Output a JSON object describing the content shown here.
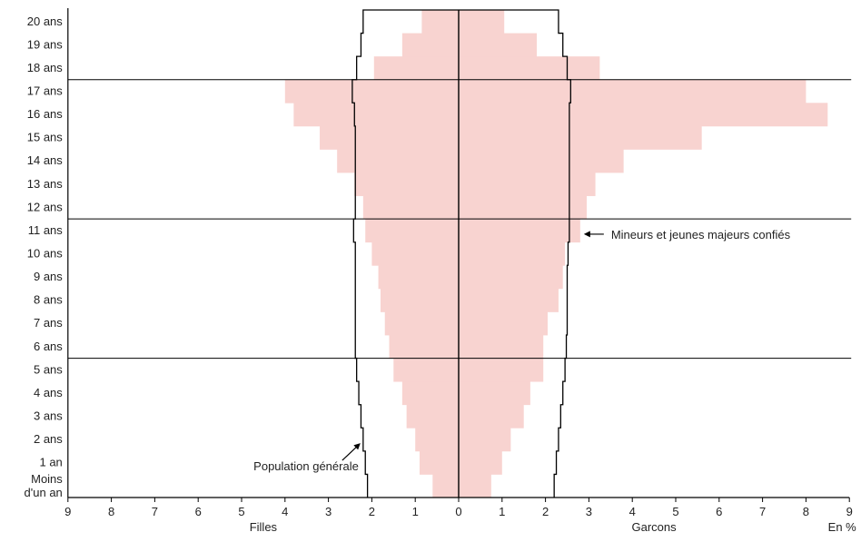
{
  "chart_data": {
    "type": "bar",
    "subtype": "population-pyramid",
    "orientation": "horizontal",
    "categories": [
      "Moins d'un an",
      "1 an",
      "2 ans",
      "3 ans",
      "4 ans",
      "5 ans",
      "6 ans",
      "7 ans",
      "8 ans",
      "9 ans",
      "10 ans",
      "11 ans",
      "12 ans",
      "13 ans",
      "14 ans",
      "15 ans",
      "16 ans",
      "17 ans",
      "18 ans",
      "19 ans",
      "20 ans"
    ],
    "category_label_lines": {
      "Moins d'un an": [
        "Moins",
        "d'un an"
      ]
    },
    "series": [
      {
        "side": "left",
        "name": "",
        "kind": "filled-bars",
        "color": "#f8d3d0",
        "values": [
          0.6,
          0.9,
          1.0,
          1.2,
          1.3,
          1.5,
          1.6,
          1.7,
          1.8,
          1.85,
          2.0,
          2.15,
          2.2,
          2.4,
          2.8,
          3.2,
          3.8,
          4.0,
          1.95,
          1.3,
          0.85
        ]
      },
      {
        "side": "right",
        "name": "",
        "kind": "filled-bars",
        "color": "#f8d3d0",
        "values": [
          0.75,
          1.0,
          1.2,
          1.5,
          1.65,
          1.95,
          1.95,
          2.05,
          2.3,
          2.4,
          2.45,
          2.8,
          2.95,
          3.15,
          3.8,
          5.6,
          8.5,
          8.0,
          3.25,
          1.8,
          1.05
        ]
      },
      {
        "side": "left",
        "name": "",
        "kind": "outline",
        "color": "#000000",
        "values": [
          2.1,
          2.15,
          2.2,
          2.25,
          2.3,
          2.35,
          2.38,
          2.38,
          2.38,
          2.38,
          2.38,
          2.42,
          2.38,
          2.38,
          2.38,
          2.38,
          2.4,
          2.45,
          2.35,
          2.25,
          2.2
        ]
      },
      {
        "side": "right",
        "name": "",
        "kind": "outline",
        "color": "#000000",
        "values": [
          2.2,
          2.25,
          2.3,
          2.35,
          2.4,
          2.45,
          2.48,
          2.5,
          2.5,
          2.5,
          2.52,
          2.55,
          2.55,
          2.55,
          2.55,
          2.55,
          2.55,
          2.58,
          2.5,
          2.4,
          2.3
        ]
      }
    ],
    "xlim_left": [
      0,
      9
    ],
    "xlim_right": [
      0,
      9
    ],
    "x_ticks": [
      9,
      8,
      7,
      6,
      5,
      4,
      3,
      2,
      1,
      0,
      1,
      2,
      3,
      4,
      5,
      6,
      7,
      8,
      9
    ],
    "x_labels": {
      "left": "Filles",
      "right": "Garcons",
      "unit": "En %"
    },
    "reference_lines_between": [
      [
        "5 ans",
        "6 ans"
      ],
      [
        "11 ans",
        "12 ans"
      ],
      [
        "17 ans",
        "18 ans"
      ]
    ],
    "annotations": [
      {
        "text": "Mineurs et jeunes majeurs confiés",
        "target_series": "right filled-bars",
        "target_category": "11 ans"
      },
      {
        "text": "Population générale",
        "target_series": "left outline",
        "target_category": "2 ans"
      }
    ],
    "grid": false,
    "legend": "none"
  }
}
